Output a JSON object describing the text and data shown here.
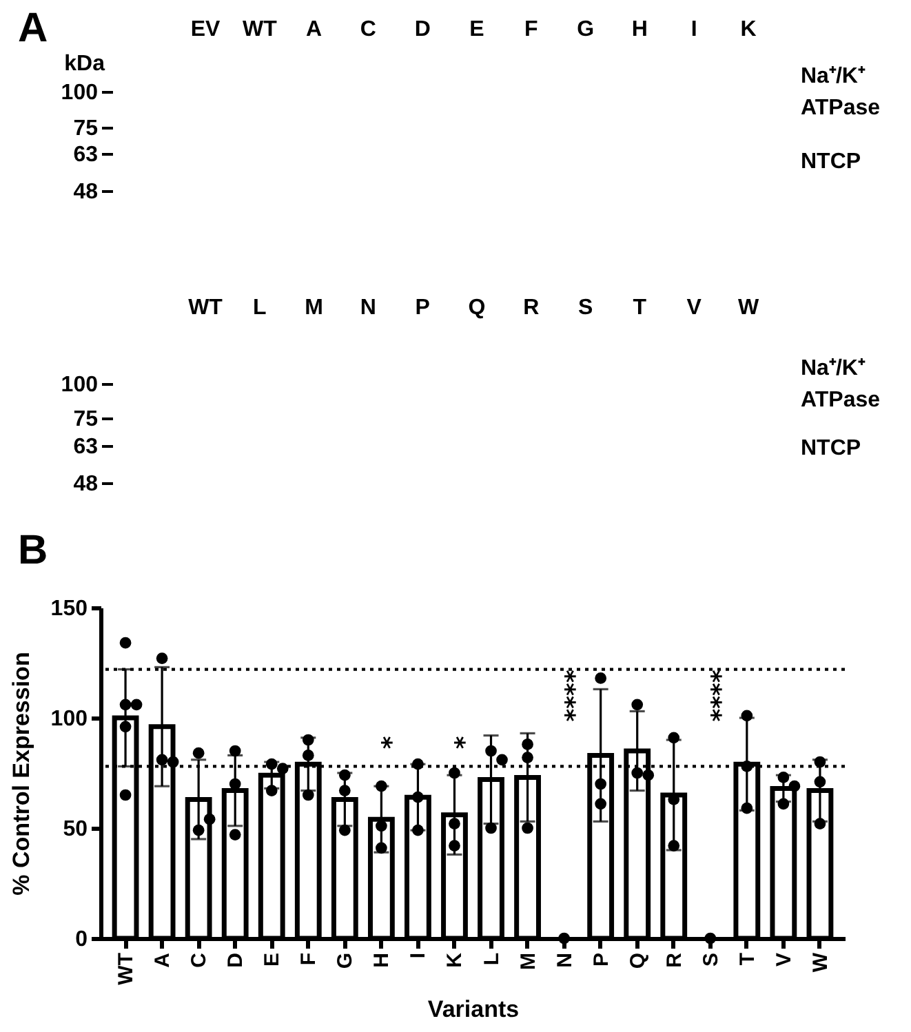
{
  "chart_data": [
    {
      "type": "other",
      "title": "A",
      "categories": [
        "EV",
        "WT",
        "A",
        "C",
        "D",
        "E",
        "F",
        "G",
        "H",
        "I",
        "K"
      ],
      "ylabel": "kDa",
      "annotations": [
        "100",
        "75",
        "63",
        "48",
        "Na⁺/K⁺ ATPase",
        "NTCP"
      ]
    },
    {
      "type": "other",
      "categories": [
        "WT",
        "L",
        "M",
        "N",
        "P",
        "Q",
        "R",
        "S",
        "T",
        "V",
        "W"
      ],
      "annotations": [
        "100",
        "75",
        "63",
        "48",
        "Na⁺/K⁺ ATPase",
        "NTCP"
      ]
    },
    {
      "type": "bar",
      "title": "B",
      "xlabel": "Variants",
      "ylabel": "% Control Expression",
      "categories": [
        "WT",
        "A",
        "C",
        "D",
        "E",
        "F",
        "G",
        "H",
        "I",
        "K",
        "L",
        "M",
        "N",
        "P",
        "Q",
        "R",
        "S",
        "T",
        "V",
        "W"
      ],
      "series": [
        {
          "type": "bar",
          "color": "#ffffff",
          "values": [
            100,
            96,
            63,
            67,
            74,
            79,
            63,
            54,
            64,
            56,
            72,
            73,
            0,
            83,
            85,
            65,
            0,
            79,
            68,
            67
          ],
          "errors": [
            22,
            27,
            18,
            16,
            6,
            12,
            12,
            15,
            15,
            18,
            20,
            20,
            null,
            30,
            18,
            25,
            null,
            21,
            6,
            14
          ]
        },
        {
          "type": "scatter",
          "color": "#000000",
          "x": [
            "WT",
            "WT",
            "WT",
            "WT",
            "WT",
            "A",
            "A",
            "A",
            "C",
            "C",
            "C",
            "D",
            "D",
            "D",
            "E",
            "E",
            "E",
            "F",
            "F",
            "F",
            "G",
            "G",
            "G",
            "H",
            "H",
            "H",
            "I",
            "I",
            "I",
            "K",
            "K",
            "K",
            "L",
            "L",
            "L",
            "M",
            "M",
            "M",
            "N",
            "P",
            "P",
            "P",
            "Q",
            "Q",
            "Q",
            "R",
            "R",
            "R",
            "S",
            "T",
            "T",
            "T",
            "V",
            "V",
            "V",
            "W",
            "W",
            "W"
          ],
          "values": [
            134,
            106,
            106,
            96,
            65,
            127,
            81,
            80,
            84,
            49,
            54,
            85,
            70,
            47,
            79,
            77,
            67,
            90,
            83,
            65,
            74,
            67,
            49,
            69,
            51,
            41,
            79,
            64,
            49,
            75,
            52,
            42,
            85,
            81,
            50,
            88,
            82,
            50,
            0,
            118,
            70,
            61,
            106,
            75,
            74,
            91,
            63,
            42,
            0,
            101,
            78,
            59,
            73,
            69,
            61,
            80,
            71,
            52
          ]
        }
      ],
      "ylim": [
        0,
        150
      ],
      "yticks": [
        0,
        50,
        100,
        150
      ],
      "marker": "circle",
      "ref_lines": [
        {
          "axis": "y",
          "value": 122,
          "line_style": "dotted",
          "color": "#000000"
        },
        {
          "axis": "y",
          "value": 78,
          "line_style": "dotted",
          "color": "#000000"
        }
      ],
      "annotations": [
        "*",
        "*",
        "****",
        "****"
      ]
    }
  ]
}
